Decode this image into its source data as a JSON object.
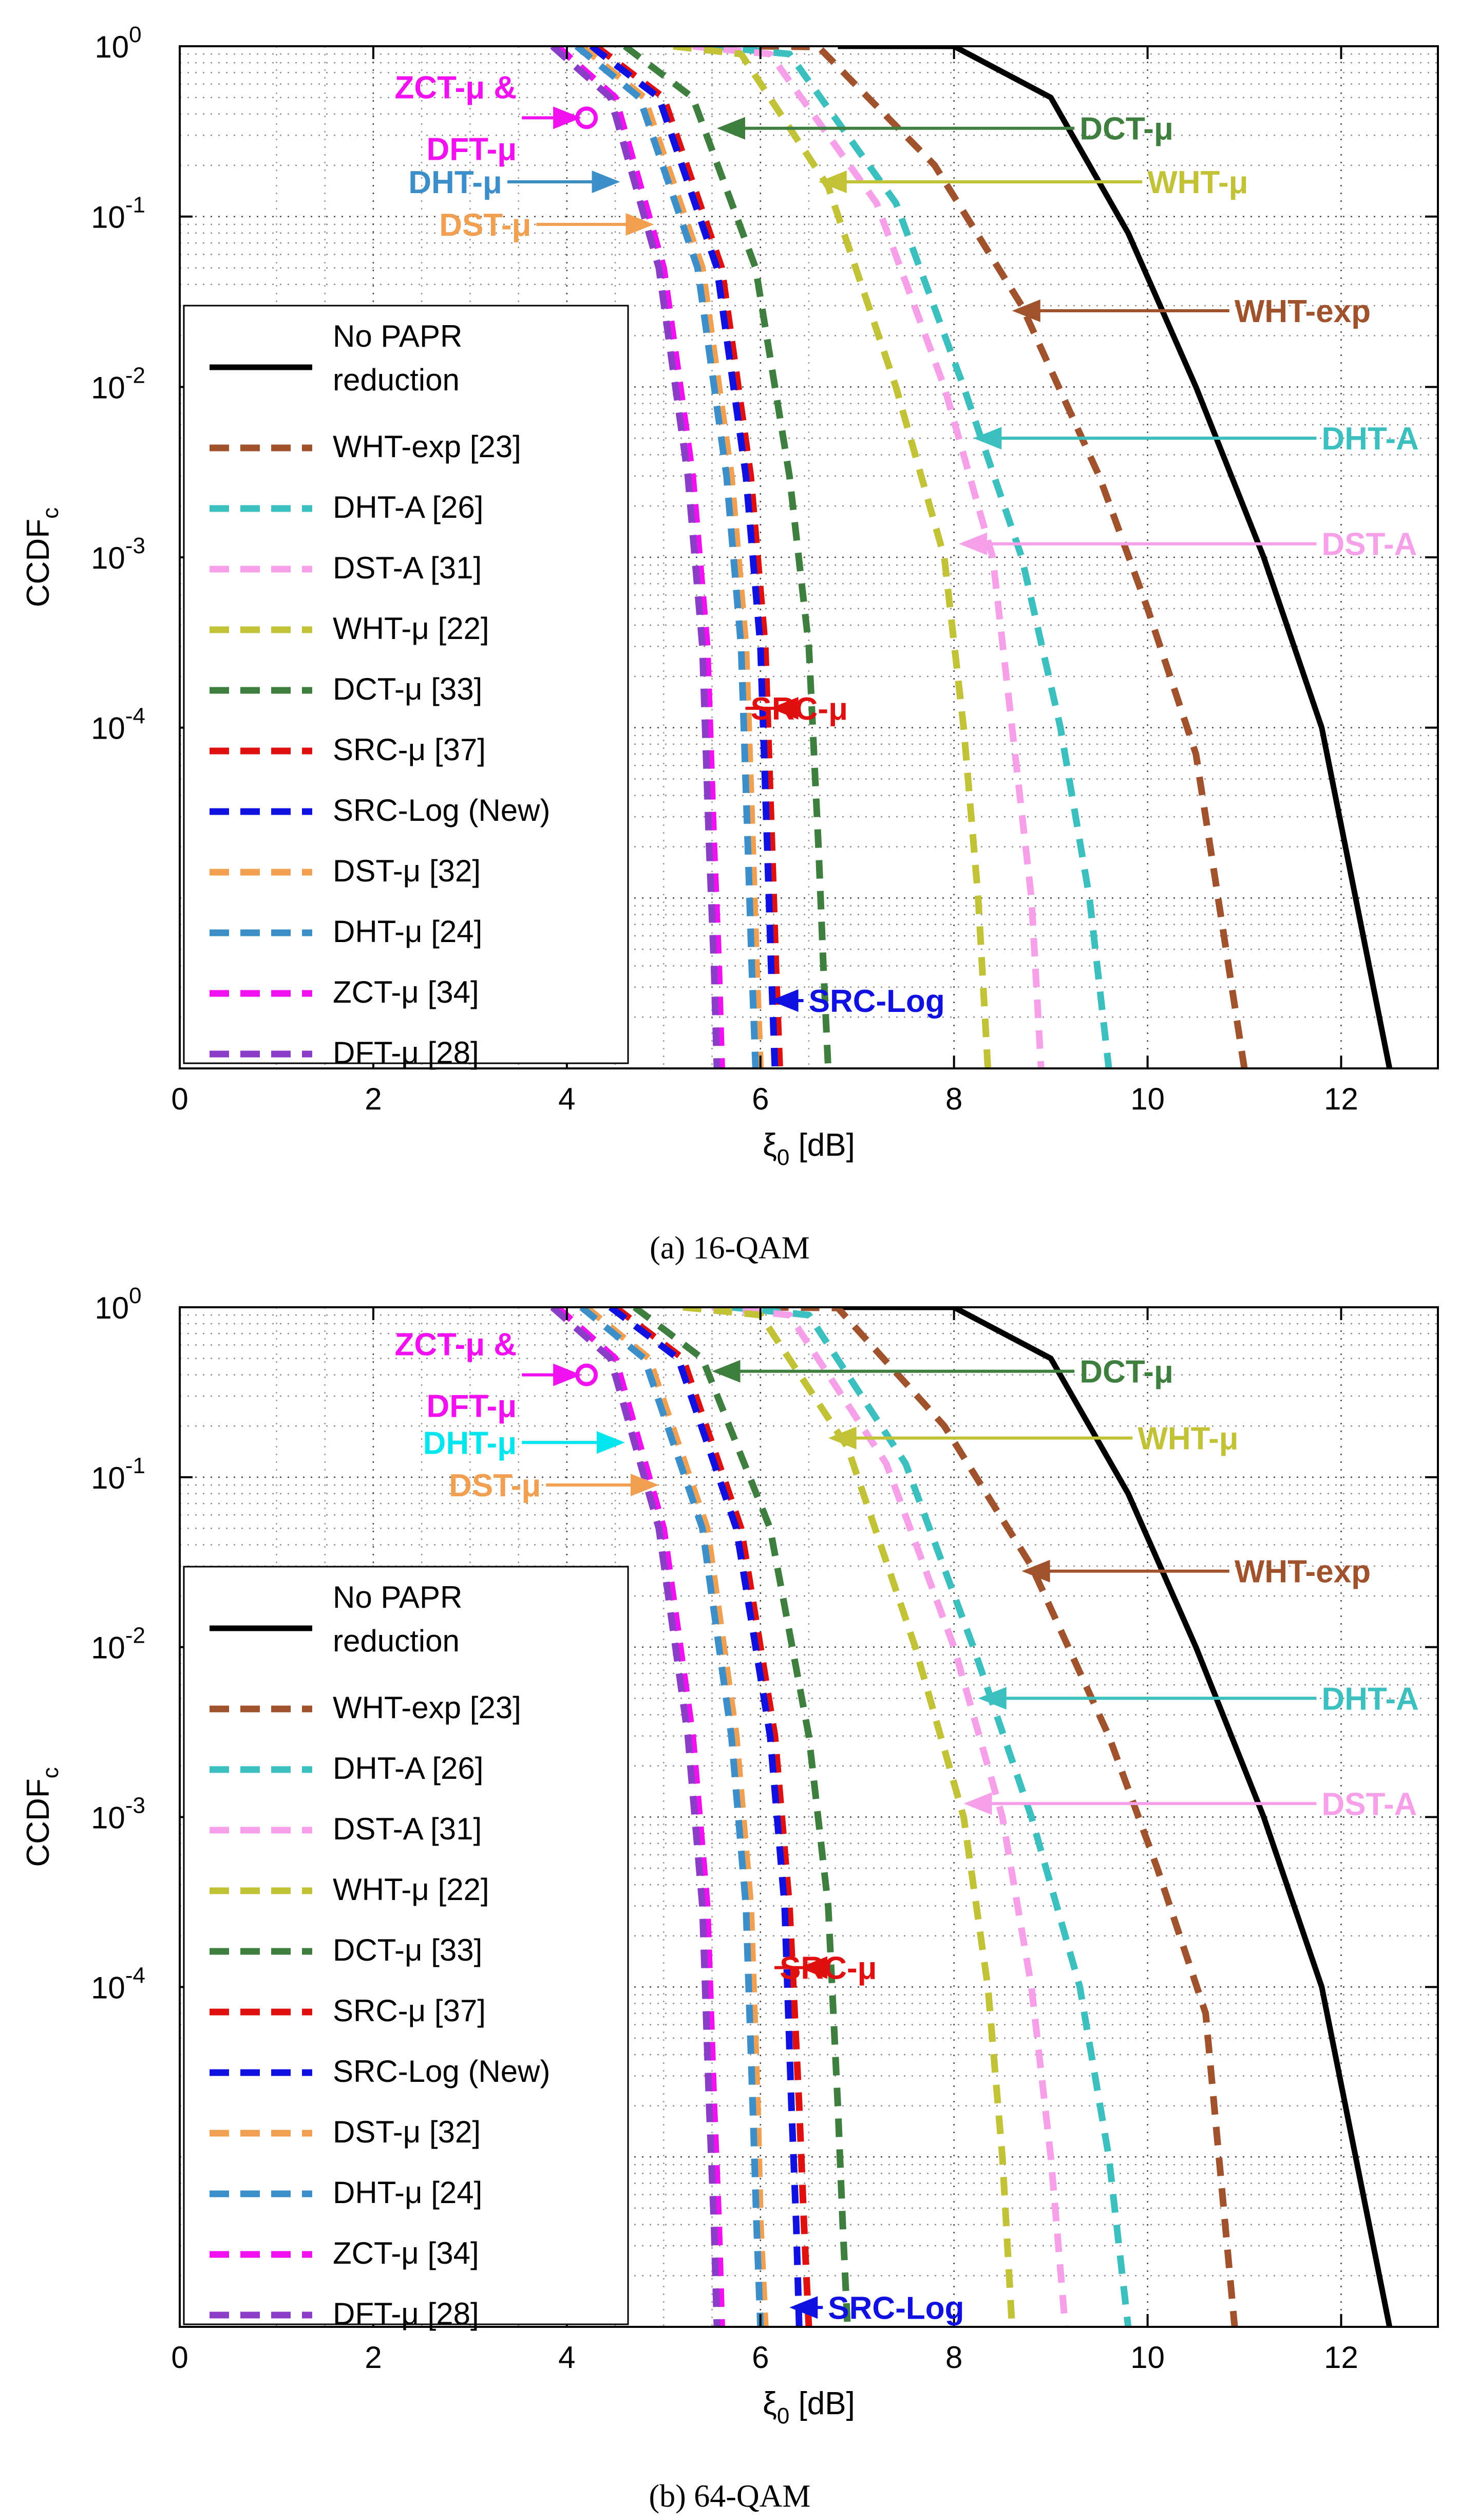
{
  "figure": {
    "caption_a": "(a) 16-QAM",
    "caption_b": "(b) 64-QAM"
  },
  "chart_data": [
    {
      "type": "line",
      "id": "a",
      "title": "",
      "caption": "(a) 16-QAM",
      "xlabel": "ξ0 [dB]",
      "ylabel": "CCDFc",
      "xlim": [
        0,
        13
      ],
      "ylim": [
        1e-06,
        1
      ],
      "yscale": "log",
      "grid": true,
      "xticks": [
        0,
        2,
        4,
        6,
        8,
        10,
        12
      ],
      "xtick_labels": [
        "0",
        "2",
        "4",
        "6",
        "8",
        "10",
        "12"
      ],
      "yticks": [
        1,
        0.1,
        0.01,
        0.001,
        0.0001
      ],
      "ytick_labels": [
        "10^0",
        "10^-1",
        "10^-2",
        "10^-3",
        "10^-4"
      ],
      "legend_position": "left",
      "series": [
        {
          "name": "No PAPR reduction",
          "color": "#000000",
          "style": "solid",
          "x": [
            6.8,
            8.0,
            9.0,
            9.8,
            10.5,
            11.2,
            11.8,
            12.5
          ],
          "y": [
            1,
            0.999,
            0.5,
            0.08,
            0.01,
            0.001,
            0.0001,
            1e-06
          ]
        },
        {
          "name": "WHT-exp [23]",
          "color": "#a0522d",
          "style": "dashed",
          "x": [
            6.0,
            6.6,
            7.8,
            8.7,
            9.5,
            10.0,
            10.5,
            11.0
          ],
          "y": [
            1,
            0.99,
            0.2,
            0.03,
            0.003,
            0.0005,
            7e-05,
            1e-06
          ]
        },
        {
          "name": "DHT-A [26]",
          "color": "#3cbfbf",
          "style": "dashed",
          "x": [
            5.5,
            6.3,
            7.4,
            8.1,
            8.7,
            9.1,
            9.4,
            9.6
          ],
          "y": [
            1,
            0.9,
            0.12,
            0.01,
            0.001,
            0.0001,
            1e-05,
            1e-06
          ]
        },
        {
          "name": "DST-A [31]",
          "color": "#f5a0e8",
          "style": "dashed",
          "x": [
            5.3,
            6.1,
            7.2,
            7.9,
            8.4,
            8.6,
            8.8,
            8.9
          ],
          "y": [
            1,
            0.9,
            0.12,
            0.01,
            0.001,
            0.0001,
            1e-05,
            1e-06
          ]
        },
        {
          "name": "WHT-μ [22]",
          "color": "#c2c236",
          "style": "dashed",
          "x": [
            5.1,
            5.8,
            6.7,
            7.4,
            7.9,
            8.1,
            8.25,
            8.35
          ],
          "y": [
            1,
            0.9,
            0.15,
            0.01,
            0.001,
            0.0001,
            1e-05,
            1e-06
          ]
        },
        {
          "name": "DCT-μ [33]",
          "color": "#3e7e3e",
          "style": "dashed",
          "x": [
            4.6,
            5.3,
            5.95,
            6.3,
            6.5,
            6.6,
            6.65,
            6.7
          ],
          "y": [
            1,
            0.5,
            0.05,
            0.003,
            0.0003,
            2e-05,
            4e-06,
            1e-06
          ]
        },
        {
          "name": "SRC-μ [37]",
          "color": "#e01010",
          "style": "dashed",
          "x": [
            4.3,
            5.0,
            5.6,
            5.9,
            6.05,
            6.12,
            6.16,
            6.2
          ],
          "y": [
            1,
            0.5,
            0.05,
            0.003,
            0.0003,
            2e-05,
            4e-06,
            1e-06
          ]
        },
        {
          "name": "SRC-Log (New)",
          "color": "#1010e0",
          "style": "dashed",
          "x": [
            4.25,
            4.95,
            5.55,
            5.85,
            6.0,
            6.07,
            6.11,
            6.15
          ],
          "y": [
            1,
            0.5,
            0.05,
            0.003,
            0.0003,
            2e-05,
            4e-06,
            1e-06
          ]
        },
        {
          "name": "DST-μ [32]",
          "color": "#f0a050",
          "style": "dashed",
          "x": [
            4.15,
            4.8,
            5.4,
            5.7,
            5.85,
            5.92,
            5.96,
            6.0
          ],
          "y": [
            1,
            0.5,
            0.05,
            0.003,
            0.0003,
            2e-05,
            4e-06,
            1e-06
          ]
        },
        {
          "name": "DHT-μ [24]",
          "color": "#3c8fc8",
          "style": "dashed",
          "x": [
            4.1,
            4.75,
            5.35,
            5.65,
            5.8,
            5.87,
            5.91,
            5.95
          ],
          "y": [
            1,
            0.5,
            0.05,
            0.003,
            0.0003,
            2e-05,
            4e-06,
            1e-06
          ]
        },
        {
          "name": "ZCT-μ [34]",
          "color": "#f010f0",
          "style": "dashed",
          "x": [
            3.9,
            4.5,
            5.0,
            5.3,
            5.45,
            5.52,
            5.57,
            5.6
          ],
          "y": [
            1,
            0.5,
            0.05,
            0.003,
            0.0003,
            2e-05,
            4e-06,
            1e-06
          ]
        },
        {
          "name": "DFT-μ [28]",
          "color": "#8a3ec8",
          "style": "dashed",
          "x": [
            3.85,
            4.45,
            4.95,
            5.25,
            5.4,
            5.47,
            5.52,
            5.55
          ],
          "y": [
            1,
            0.5,
            0.05,
            0.003,
            0.0003,
            2e-05,
            4e-06,
            1e-06
          ]
        }
      ],
      "annotations": [
        {
          "lines": [
            "ZCT-μ &",
            "DFT-μ"
          ],
          "color": "#f010f0",
          "tx": 2.5,
          "ty": 0.55,
          "ax": 4.15,
          "ay": 0.38,
          "marker": true
        },
        {
          "lines": [
            "DHT-μ"
          ],
          "color": "#3c8fc8",
          "tx": 2.35,
          "ty": 0.16,
          "ax": 4.55,
          "ay": 0.16
        },
        {
          "lines": [
            "DST-μ"
          ],
          "color": "#f0a050",
          "tx": 2.65,
          "ty": 0.09,
          "ax": 4.9,
          "ay": 0.09
        },
        {
          "lines": [
            "DCT-μ"
          ],
          "color": "#3e7e3e",
          "tx": 10.2,
          "ty": 0.33,
          "ax": 5.55,
          "ay": 0.33
        },
        {
          "lines": [
            "WHT-μ"
          ],
          "color": "#c2c236",
          "tx": 10.9,
          "ty": 0.16,
          "ax": 6.6,
          "ay": 0.16
        },
        {
          "lines": [
            "WHT-exp"
          ],
          "color": "#a0522d",
          "tx": 11.8,
          "ty": 0.028,
          "ax": 8.6,
          "ay": 0.028
        },
        {
          "lines": [
            "DHT-A"
          ],
          "color": "#3cbfbf",
          "tx": 12.7,
          "ty": 0.005,
          "ax": 8.2,
          "ay": 0.005
        },
        {
          "lines": [
            "DST-A"
          ],
          "color": "#f5a0e8",
          "tx": 12.7,
          "ty": 0.0012,
          "ax": 8.05,
          "ay": 0.0012
        },
        {
          "lines": [
            "SRC-μ"
          ],
          "color": "#e01010",
          "tx": 6.8,
          "ty": 0.00013,
          "ax": 6.1,
          "ay": 0.00013
        },
        {
          "lines": [
            "SRC-Log"
          ],
          "color": "#1010e0",
          "tx": 7.4,
          "ty": 2.5e-06,
          "ax": 6.1,
          "ay": 2.5e-06
        }
      ]
    },
    {
      "type": "line",
      "id": "b",
      "title": "",
      "caption": "(b) 64-QAM",
      "xlabel": "ξ0 [dB]",
      "ylabel": "CCDFc",
      "xlim": [
        0,
        13
      ],
      "ylim": [
        1e-06,
        1
      ],
      "yscale": "log",
      "grid": true,
      "xticks": [
        0,
        2,
        4,
        6,
        8,
        10,
        12
      ],
      "xtick_labels": [
        "0",
        "2",
        "4",
        "6",
        "8",
        "10",
        "12"
      ],
      "yticks": [
        1,
        0.1,
        0.01,
        0.001,
        0.0001
      ],
      "ytick_labels": [
        "10^0",
        "10^-1",
        "10^-2",
        "10^-3",
        "10^-4"
      ],
      "legend_position": "left",
      "series": [
        {
          "name": "No PAPR reduction",
          "color": "#000000",
          "style": "solid",
          "x": [
            6.8,
            8.0,
            9.0,
            9.8,
            10.5,
            11.2,
            11.8,
            12.5
          ],
          "y": [
            1,
            0.999,
            0.5,
            0.08,
            0.01,
            0.001,
            0.0001,
            1e-06
          ]
        },
        {
          "name": "WHT-exp [23]",
          "color": "#a0522d",
          "style": "dashed",
          "x": [
            6.1,
            6.8,
            7.9,
            8.8,
            9.6,
            10.1,
            10.6,
            10.9
          ],
          "y": [
            1,
            0.99,
            0.2,
            0.03,
            0.003,
            0.0005,
            7e-05,
            1e-06
          ]
        },
        {
          "name": "DHT-A [26]",
          "color": "#3cbfbf",
          "style": "dashed",
          "x": [
            5.7,
            6.5,
            7.5,
            8.2,
            8.8,
            9.3,
            9.6,
            9.8
          ],
          "y": [
            1,
            0.9,
            0.12,
            0.01,
            0.001,
            0.0001,
            1e-05,
            1e-06
          ]
        },
        {
          "name": "DST-A [31]",
          "color": "#f5a0e8",
          "style": "dashed",
          "x": [
            5.5,
            6.3,
            7.3,
            8.0,
            8.5,
            8.8,
            9.0,
            9.15
          ],
          "y": [
            1,
            0.9,
            0.12,
            0.01,
            0.001,
            0.0001,
            1e-05,
            1e-06
          ]
        },
        {
          "name": "WHT-μ [22]",
          "color": "#c2c236",
          "style": "dashed",
          "x": [
            5.2,
            6.0,
            6.9,
            7.6,
            8.1,
            8.35,
            8.5,
            8.6
          ],
          "y": [
            1,
            0.9,
            0.15,
            0.01,
            0.001,
            0.0001,
            1e-05,
            1e-06
          ]
        },
        {
          "name": "DCT-μ [33]",
          "color": "#3e7e3e",
          "style": "dashed",
          "x": [
            4.7,
            5.4,
            6.1,
            6.5,
            6.7,
            6.8,
            6.85,
            6.9
          ],
          "y": [
            1,
            0.5,
            0.05,
            0.003,
            0.0003,
            2e-05,
            4e-06,
            1e-06
          ]
        },
        {
          "name": "SRC-μ [37]",
          "color": "#e01010",
          "style": "dashed",
          "x": [
            4.5,
            5.2,
            5.8,
            6.15,
            6.3,
            6.4,
            6.45,
            6.5
          ],
          "y": [
            1,
            0.5,
            0.05,
            0.003,
            0.0003,
            2e-05,
            4e-06,
            1e-06
          ]
        },
        {
          "name": "SRC-Log (New)",
          "color": "#1010e0",
          "style": "dashed",
          "x": [
            4.45,
            5.15,
            5.75,
            6.1,
            6.25,
            6.32,
            6.37,
            6.4
          ],
          "y": [
            1,
            0.5,
            0.05,
            0.003,
            0.0003,
            2e-05,
            4e-06,
            1e-06
          ]
        },
        {
          "name": "DST-μ [32]",
          "color": "#f0a050",
          "style": "dashed",
          "x": [
            4.2,
            4.85,
            5.45,
            5.75,
            5.9,
            5.97,
            6.0,
            6.05
          ],
          "y": [
            1,
            0.5,
            0.05,
            0.003,
            0.0003,
            2e-05,
            4e-06,
            1e-06
          ]
        },
        {
          "name": "DHT-μ [24]",
          "color": "#3c8fc8",
          "style": "dashed",
          "x": [
            4.15,
            4.8,
            5.4,
            5.7,
            5.85,
            5.92,
            5.96,
            6.0
          ],
          "y": [
            1,
            0.5,
            0.05,
            0.003,
            0.0003,
            2e-05,
            4e-06,
            1e-06
          ]
        },
        {
          "name": "ZCT-μ [34]",
          "color": "#f010f0",
          "style": "dashed",
          "x": [
            3.9,
            4.5,
            5.0,
            5.3,
            5.45,
            5.52,
            5.57,
            5.6
          ],
          "y": [
            1,
            0.5,
            0.05,
            0.003,
            0.0003,
            2e-05,
            4e-06,
            1e-06
          ]
        },
        {
          "name": "DFT-μ [28]",
          "color": "#8a3ec8",
          "style": "dashed",
          "x": [
            3.85,
            4.45,
            4.95,
            5.25,
            5.4,
            5.47,
            5.52,
            5.55
          ],
          "y": [
            1,
            0.5,
            0.05,
            0.003,
            0.0003,
            2e-05,
            4e-06,
            1e-06
          ]
        }
      ],
      "annotations": [
        {
          "lines": [
            "ZCT-μ &",
            "DFT-μ"
          ],
          "color": "#f010f0",
          "tx": 2.5,
          "ty": 0.55,
          "ax": 4.15,
          "ay": 0.4,
          "marker": true
        },
        {
          "lines": [
            "DHT-μ"
          ],
          "color": "#00e5ee",
          "tx": 2.5,
          "ty": 0.16,
          "ax": 4.6,
          "ay": 0.16
        },
        {
          "lines": [
            "DST-μ"
          ],
          "color": "#f0a050",
          "tx": 2.75,
          "ty": 0.09,
          "ax": 4.95,
          "ay": 0.09
        },
        {
          "lines": [
            "DCT-μ"
          ],
          "color": "#3e7e3e",
          "tx": 10.2,
          "ty": 0.42,
          "ax": 5.5,
          "ay": 0.42
        },
        {
          "lines": [
            "WHT-μ"
          ],
          "color": "#c2c236",
          "tx": 10.8,
          "ty": 0.17,
          "ax": 6.7,
          "ay": 0.17
        },
        {
          "lines": [
            "WHT-exp"
          ],
          "color": "#a0522d",
          "tx": 11.8,
          "ty": 0.028,
          "ax": 8.7,
          "ay": 0.028
        },
        {
          "lines": [
            "DHT-A"
          ],
          "color": "#3cbfbf",
          "tx": 12.7,
          "ty": 0.005,
          "ax": 8.25,
          "ay": 0.005
        },
        {
          "lines": [
            "DST-A"
          ],
          "color": "#f5a0e8",
          "tx": 12.7,
          "ty": 0.0012,
          "ax": 8.1,
          "ay": 0.0012
        },
        {
          "lines": [
            "SRC-μ"
          ],
          "color": "#e01010",
          "tx": 7.1,
          "ty": 0.00013,
          "ax": 6.4,
          "ay": 0.00013
        },
        {
          "lines": [
            "SRC-Log"
          ],
          "color": "#1010e0",
          "tx": 7.6,
          "ty": 1.3e-06,
          "ax": 6.3,
          "ay": 1.3e-06
        }
      ]
    }
  ]
}
